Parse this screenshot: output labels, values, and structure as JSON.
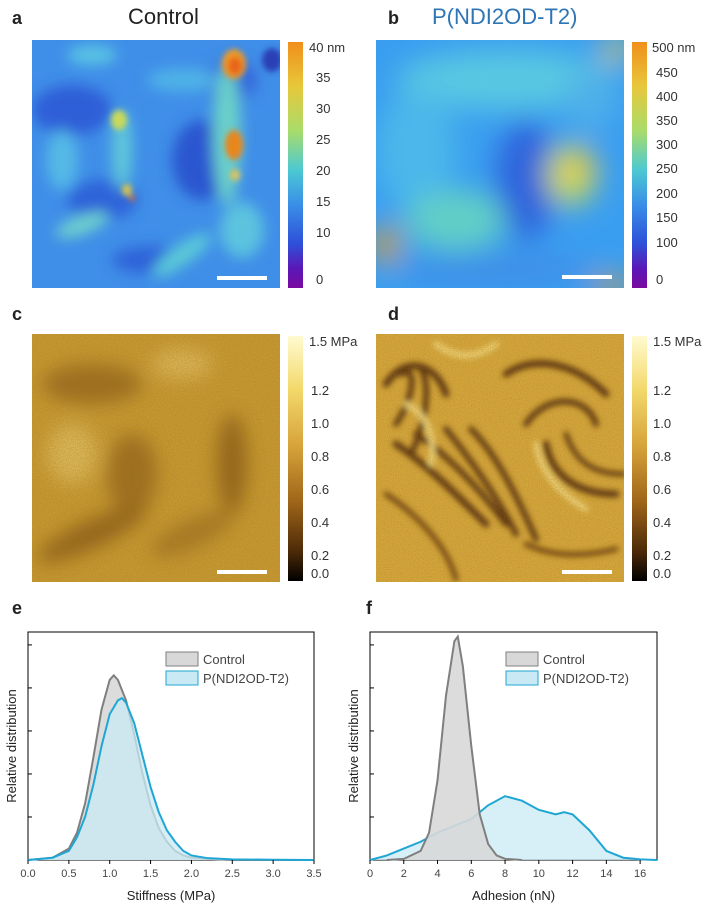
{
  "colors": {
    "title_b": "#2e75b6",
    "control_fill": "#d8d8d8",
    "control_line": "#7f7f7f",
    "p_fill": "#c9e9f4",
    "p_line": "#1fa6d4"
  },
  "panels": {
    "a": {
      "letter": "a",
      "title": "Control"
    },
    "b": {
      "letter": "b",
      "title": "P(NDI2OD-T2)"
    },
    "c": {
      "letter": "c"
    },
    "d": {
      "letter": "d"
    },
    "e": {
      "letter": "e"
    },
    "f": {
      "letter": "f"
    }
  },
  "colorbars": {
    "height_a": {
      "top_label": "40 nm",
      "ticks": [
        "35",
        "30",
        "25",
        "20",
        "15",
        "10",
        "0"
      ]
    },
    "height_b": {
      "top_label": "500 nm",
      "ticks": [
        "450",
        "400",
        "350",
        "300",
        "250",
        "200",
        "150",
        "100",
        "0"
      ]
    },
    "mod_c": {
      "top_label": "1.5 MPa",
      "ticks": [
        "1.2",
        "1.0",
        "0.8",
        "0.6",
        "0.4",
        "0.2",
        "0.0"
      ]
    },
    "mod_d": {
      "top_label": "1.5 MPa",
      "ticks": [
        "1.2",
        "1.0",
        "0.8",
        "0.6",
        "0.4",
        "0.2",
        "0.0"
      ]
    }
  },
  "chart_data": [
    {
      "type": "area",
      "panel": "e",
      "xlabel": "Stiffness (MPa)",
      "ylabel": "Relative distribution",
      "xlim": [
        0.0,
        3.5
      ],
      "xticks": [
        "0.0",
        "0.5",
        "1.0",
        "1.5",
        "2.0",
        "2.5",
        "3.0",
        "3.5"
      ],
      "legend": [
        "Control",
        "P(NDI2OD-T2)"
      ],
      "legend_position": "top-right",
      "series": [
        {
          "name": "Control",
          "x": [
            0.0,
            0.3,
            0.5,
            0.6,
            0.7,
            0.8,
            0.9,
            1.0,
            1.05,
            1.1,
            1.2,
            1.3,
            1.4,
            1.5,
            1.6,
            1.7,
            1.8,
            1.9,
            2.0,
            2.2,
            2.5,
            3.0,
            3.5
          ],
          "y": [
            0.0,
            0.01,
            0.05,
            0.12,
            0.25,
            0.45,
            0.66,
            0.79,
            0.81,
            0.79,
            0.7,
            0.55,
            0.38,
            0.24,
            0.14,
            0.08,
            0.04,
            0.02,
            0.01,
            0.005,
            0.0,
            0.0,
            0.0
          ]
        },
        {
          "name": "P(NDI2OD-T2)",
          "x": [
            0.0,
            0.3,
            0.5,
            0.6,
            0.7,
            0.8,
            0.9,
            1.0,
            1.1,
            1.15,
            1.2,
            1.3,
            1.4,
            1.5,
            1.6,
            1.7,
            1.8,
            1.9,
            2.0,
            2.2,
            2.5,
            3.0,
            3.5
          ],
          "y": [
            0.0,
            0.01,
            0.04,
            0.1,
            0.19,
            0.33,
            0.5,
            0.64,
            0.7,
            0.71,
            0.69,
            0.6,
            0.46,
            0.32,
            0.21,
            0.13,
            0.08,
            0.04,
            0.02,
            0.008,
            0.003,
            0.001,
            0.0
          ]
        }
      ]
    },
    {
      "type": "area",
      "panel": "f",
      "xlabel": "Adhesion (nN)",
      "ylabel": "Relative distribution",
      "xlim": [
        0,
        17
      ],
      "xticks": [
        "0",
        "2",
        "4",
        "6",
        "8",
        "10",
        "12",
        "14",
        "16"
      ],
      "legend": [
        "Control",
        "P(NDI2OD-T2)"
      ],
      "legend_position": "top-right",
      "series": [
        {
          "name": "Control",
          "x": [
            1,
            2,
            3,
            3.5,
            4,
            4.5,
            5,
            5.2,
            5.5,
            6,
            6.5,
            7,
            7.5,
            8,
            9
          ],
          "y": [
            0.0,
            0.005,
            0.04,
            0.12,
            0.35,
            0.72,
            0.96,
            0.98,
            0.85,
            0.5,
            0.2,
            0.07,
            0.02,
            0.005,
            0.0
          ]
        },
        {
          "name": "P(NDI2OD-T2)",
          "x": [
            0,
            1,
            2,
            3,
            4,
            5,
            6,
            7,
            8,
            9,
            10,
            11,
            11.5,
            12,
            13,
            14,
            15,
            16,
            17
          ],
          "y": [
            0.0,
            0.02,
            0.05,
            0.08,
            0.12,
            0.15,
            0.18,
            0.24,
            0.28,
            0.26,
            0.22,
            0.2,
            0.21,
            0.2,
            0.13,
            0.04,
            0.01,
            0.003,
            0.0
          ]
        }
      ]
    }
  ]
}
